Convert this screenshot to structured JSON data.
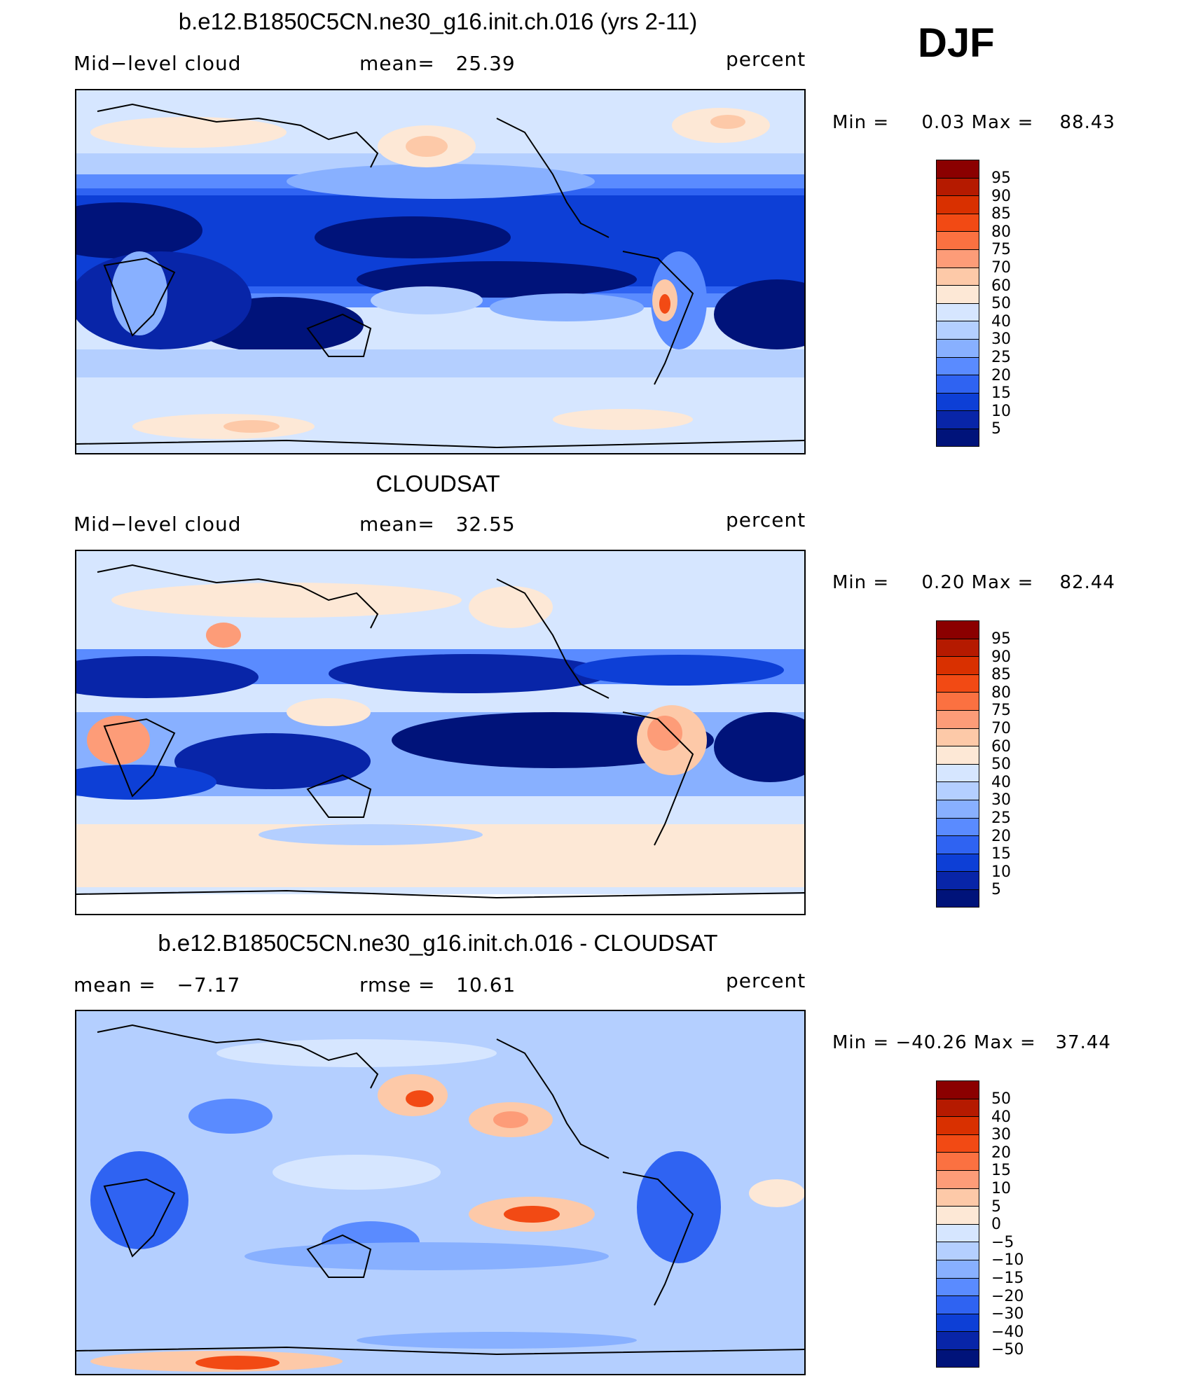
{
  "season": "DJF",
  "panels": [
    {
      "title": "b.e12.B1850C5CN.ne30_g16.init.ch.016 (yrs 2-11)",
      "left_label": "Mid−level cloud",
      "center_label": "mean=   25.39",
      "right_label": "percent",
      "minmax": "Min =     0.03 Max =    88.43",
      "colorbar_labels": [
        "95",
        "90",
        "85",
        "80",
        "75",
        "70",
        "60",
        "50",
        "40",
        "30",
        "25",
        "20",
        "15",
        "10",
        "5"
      ]
    },
    {
      "title": "CLOUDSAT",
      "left_label": "Mid−level cloud",
      "center_label": "mean=   32.55",
      "right_label": "percent",
      "minmax": "Min =     0.20 Max =    82.44",
      "colorbar_labels": [
        "95",
        "90",
        "85",
        "80",
        "75",
        "70",
        "60",
        "50",
        "40",
        "30",
        "25",
        "20",
        "15",
        "10",
        "5"
      ]
    },
    {
      "title": "b.e12.B1850C5CN.ne30_g16.init.ch.016 - CLOUDSAT",
      "left_label": "mean =   −7.17",
      "center_label": "rmse =   10.61",
      "right_label": "percent",
      "minmax": "Min = −40.26 Max =   37.44",
      "colorbar_labels": [
        "50",
        "40",
        "30",
        "20",
        "15",
        "10",
        "5",
        "0",
        "−5",
        "−10",
        "−15",
        "−20",
        "−30",
        "−40",
        "−50"
      ]
    }
  ],
  "colorbar_colors": [
    "#8b0000",
    "#b51a00",
    "#d93000",
    "#f24a14",
    "#fb7141",
    "#fd9c78",
    "#fdc9a8",
    "#fde8d6",
    "#d6e6ff",
    "#b4cfff",
    "#88b0ff",
    "#5a8bff",
    "#2f63f2",
    "#0d3fd6",
    "#0825a8",
    "#00137a"
  ]
}
